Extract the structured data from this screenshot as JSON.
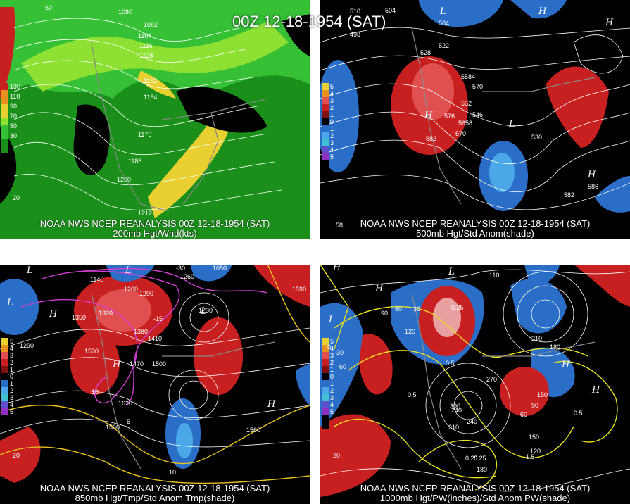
{
  "title": "00Z 12-18-1954 (SAT)",
  "panels": [
    {
      "caption_line1": "NOAA NWS NCEP REANALYSIS 00Z 12-18-1954 (SAT)",
      "caption_line2": "200mb Hgt/Wnd(kts)",
      "legend_labels": [
        "130",
        "110",
        "90",
        "70",
        "50",
        "30"
      ],
      "contour_labels": [
        "1080",
        "1092",
        "1104",
        "1116",
        "1128",
        "1152",
        "1164",
        "1176",
        "1188",
        "1200",
        "1212"
      ],
      "edge_labels": [
        "60",
        "20"
      ]
    },
    {
      "caption_line1": "NOAA NWS NCEP REANALYSIS 00Z 12-18-1954 (SAT)",
      "caption_line2": "500mb Hgt/Std Anom(shade)",
      "legend_labels": [
        "5",
        "4",
        "3",
        "2",
        "1",
        "0",
        "1",
        "2",
        "3",
        "4",
        "5"
      ],
      "contour_labels": [
        "510",
        "504",
        "498",
        "528",
        "522",
        "5584",
        "552",
        "576",
        "546",
        "5658",
        "570",
        "582",
        "582",
        "530",
        "586",
        "504",
        "570"
      ],
      "hl_labels": [
        "L",
        "H",
        "H",
        "L",
        "H",
        "H"
      ],
      "edge_labels": [
        "58"
      ]
    },
    {
      "caption_line1": "NOAA NWS NCEP REANALYSIS 00Z 12-18-1954 (SAT)",
      "caption_line2": "850mb Hgt/Tmp/Std Anom Tmp(shade)",
      "legend_labels": [
        "5",
        "4",
        "3",
        "2",
        "1",
        "0",
        "1",
        "2",
        "3",
        "4",
        "5"
      ],
      "contour_labels": [
        "1140",
        "1200",
        "1290",
        "1350",
        "1320",
        "1380",
        "1410",
        "1470",
        "1500",
        "1530",
        "1620",
        "1560",
        "1260",
        "1230",
        "1050",
        "1590",
        "1560",
        "1290",
        "-30",
        "-15",
        "10",
        "5",
        "10"
      ],
      "hl_labels": [
        "L",
        "L",
        "H",
        "L",
        "H",
        "L",
        "H"
      ],
      "edge_labels": [
        "20"
      ]
    },
    {
      "caption_line1": "NOAA NWS NCEP REANALYSIS 00Z 12-18-1954 (SAT)",
      "caption_line2": "1000mb Hgt/PW(inches)/Std Anom PW(shade)",
      "legend_labels": [
        "5",
        "4",
        "3",
        "2",
        "1",
        "0",
        "1",
        "2",
        "3",
        "4",
        "5"
      ],
      "contour_labels": [
        "0",
        "30",
        "60",
        "90",
        "120",
        "0.25",
        "0.5",
        "0.5",
        "180",
        "150",
        "210",
        "240",
        "270",
        "300",
        "0.25",
        "1.5",
        "0.5",
        "120",
        "150",
        "240",
        "210",
        "0.25",
        "180",
        "90",
        "60",
        "-30",
        "-60",
        "110"
      ],
      "hl_labels": [
        "L",
        "H",
        "L",
        "H",
        "H",
        "H"
      ],
      "edge_labels": [
        "20"
      ]
    }
  ],
  "colors": {
    "wind_30": "#1a8f1a",
    "wind_50": "#36c036",
    "wind_70": "#8ee032",
    "wind_90": "#e8d030",
    "wind_110": "#e89020",
    "wind_130": "#c82020",
    "anom_pos": "#c82020",
    "anom_neg": "#2a6ec8",
    "temp_contour": "#d040d0",
    "pw_contour": "#e8e020"
  }
}
